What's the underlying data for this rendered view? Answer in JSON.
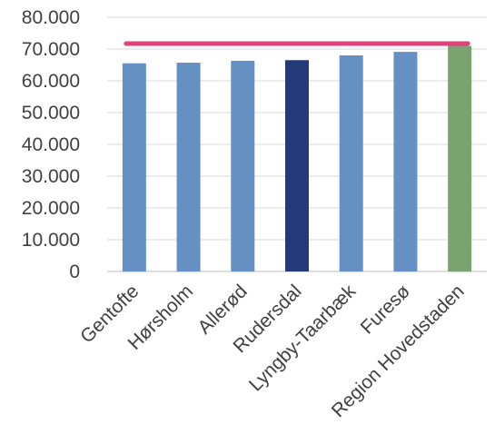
{
  "chart_data": {
    "type": "bar",
    "categories": [
      "Gentofte",
      "Hørsholm",
      "Allerød",
      "Rudersdal",
      "Lyngby-Taarbæk",
      "Furesø",
      "Region Hovedstaden"
    ],
    "values": [
      65500,
      65700,
      66300,
      66500,
      68000,
      69100,
      71000
    ],
    "bar_colors": [
      "#6490c4",
      "#6490c4",
      "#6490c4",
      "#243a78",
      "#6490c4",
      "#6490c4",
      "#79a36f"
    ],
    "ylim": [
      0,
      80000
    ],
    "yticks": [
      0,
      10000,
      20000,
      30000,
      40000,
      50000,
      60000,
      70000,
      80000
    ],
    "ytick_labels": [
      "0",
      "10.000",
      "20.000",
      "30.000",
      "40.000",
      "50.000",
      "60.000",
      "70.000",
      "80.000"
    ],
    "reference_line": {
      "value": 72000,
      "color": "#e0417a"
    },
    "grid": true,
    "title": "",
    "xlabel": "",
    "ylabel": ""
  }
}
